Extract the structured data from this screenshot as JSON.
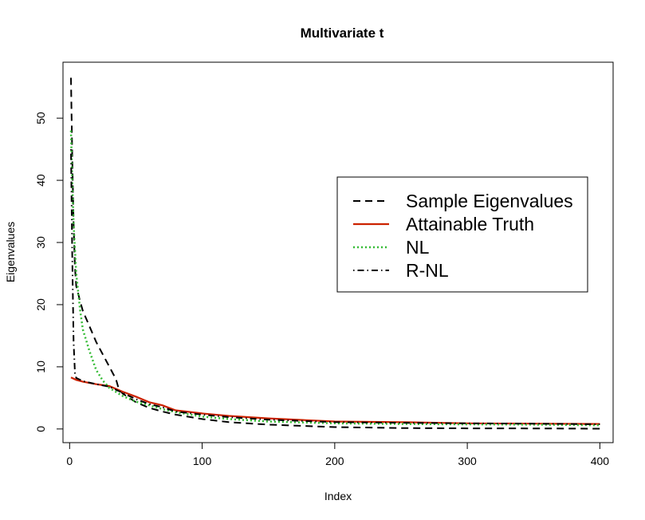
{
  "chart_data": {
    "type": "line",
    "title": "Multivariate t",
    "xlabel": "Index",
    "ylabel": "Eigenvalues",
    "xlim": [
      -5,
      410
    ],
    "ylim": [
      -2.2,
      59
    ],
    "xticks": [
      0,
      100,
      200,
      300,
      400
    ],
    "yticks": [
      0,
      10,
      20,
      30,
      40,
      50
    ],
    "grid": false,
    "legend_position": "right",
    "series": [
      {
        "name": "Sample Eigenvalues",
        "color": "#000000",
        "dash": "dashed",
        "points": [
          [
            1,
            56.5
          ],
          [
            2,
            44
          ],
          [
            3,
            33
          ],
          [
            4,
            26
          ],
          [
            5,
            23
          ],
          [
            8,
            20.5
          ],
          [
            10,
            19
          ],
          [
            15,
            16.5
          ],
          [
            20,
            14
          ],
          [
            25,
            12
          ],
          [
            30,
            10
          ],
          [
            35,
            8
          ],
          [
            37,
            6.5
          ],
          [
            40,
            5.7
          ],
          [
            50,
            4.3
          ],
          [
            60,
            3.4
          ],
          [
            70,
            2.8
          ],
          [
            80,
            2.3
          ],
          [
            100,
            1.6
          ],
          [
            120,
            1.1
          ],
          [
            150,
            0.7
          ],
          [
            200,
            0.3
          ],
          [
            250,
            0.15
          ],
          [
            300,
            0.1
          ],
          [
            350,
            0.08
          ],
          [
            400,
            0.05
          ]
        ]
      },
      {
        "name": "Attainable Truth",
        "color": "#cc2200",
        "dash": "solid",
        "points": [
          [
            1,
            8.3
          ],
          [
            5,
            7.9
          ],
          [
            10,
            7.6
          ],
          [
            20,
            7.2
          ],
          [
            30,
            6.9
          ],
          [
            40,
            6.0
          ],
          [
            50,
            5.2
          ],
          [
            60,
            4.3
          ],
          [
            70,
            3.8
          ],
          [
            80,
            3.0
          ],
          [
            100,
            2.5
          ],
          [
            120,
            2.1
          ],
          [
            150,
            1.7
          ],
          [
            200,
            1.2
          ],
          [
            250,
            1.1
          ],
          [
            300,
            0.9
          ],
          [
            350,
            0.85
          ],
          [
            400,
            0.8
          ]
        ]
      },
      {
        "name": "NL",
        "color": "#33bb33",
        "dash": "dotted",
        "points": [
          [
            1,
            48
          ],
          [
            2,
            40
          ],
          [
            3,
            33
          ],
          [
            5,
            25
          ],
          [
            8,
            19
          ],
          [
            10,
            16
          ],
          [
            15,
            12.5
          ],
          [
            20,
            9.5
          ],
          [
            25,
            7.8
          ],
          [
            30,
            6.6
          ],
          [
            40,
            5.3
          ],
          [
            50,
            4.4
          ],
          [
            60,
            3.8
          ],
          [
            70,
            3.2
          ],
          [
            80,
            2.7
          ],
          [
            100,
            2.0
          ],
          [
            120,
            1.6
          ],
          [
            150,
            1.2
          ],
          [
            200,
            0.9
          ],
          [
            250,
            0.8
          ],
          [
            300,
            0.75
          ],
          [
            350,
            0.7
          ],
          [
            400,
            0.6
          ]
        ]
      },
      {
        "name": "R-NL",
        "color": "#000000",
        "dash": "dashdot",
        "points": [
          [
            1,
            45
          ],
          [
            2,
            28
          ],
          [
            3,
            14
          ],
          [
            4,
            9
          ],
          [
            5,
            8.2
          ],
          [
            10,
            7.7
          ],
          [
            20,
            7.2
          ],
          [
            30,
            6.8
          ],
          [
            40,
            5.8
          ],
          [
            50,
            4.8
          ],
          [
            60,
            4.0
          ],
          [
            70,
            3.5
          ],
          [
            80,
            2.8
          ],
          [
            100,
            2.3
          ],
          [
            120,
            1.9
          ],
          [
            150,
            1.5
          ],
          [
            200,
            1.1
          ],
          [
            250,
            1.0
          ],
          [
            300,
            0.9
          ],
          [
            350,
            0.85
          ],
          [
            400,
            0.75
          ]
        ]
      }
    ]
  }
}
